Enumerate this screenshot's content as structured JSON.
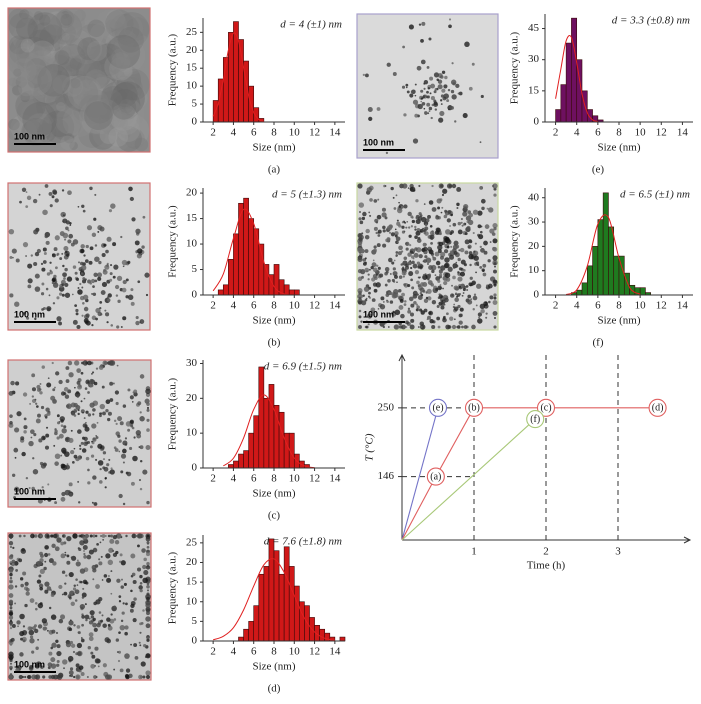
{
  "chart_data": [
    {
      "type": "histogram",
      "panel_label": "(a)",
      "scale_bar": "100 nm",
      "annotation": "d = 4 (±1) nm",
      "x_label": "Size (nm)",
      "y_label": "Frequency (a.u.)",
      "color": "#d01818",
      "bins": [
        2,
        2.5,
        3,
        3.5,
        4,
        4.5,
        5,
        5.5,
        6,
        6.5,
        7
      ],
      "counts": [
        6,
        12,
        18,
        25,
        28,
        23,
        17,
        10,
        4,
        1
      ],
      "fit": {
        "color": "#e02020",
        "x": [
          2,
          2.5,
          3,
          3.5,
          4,
          4.5,
          5,
          5.5,
          6,
          6.5,
          7
        ],
        "y": [
          1.6,
          5.1,
          11.8,
          20,
          24.8,
          22.6,
          15.2,
          7.4,
          2.7,
          0.7,
          0.2
        ]
      },
      "xlim": [
        1,
        15
      ],
      "xticks": [
        2,
        4,
        6,
        8,
        10,
        12,
        14
      ],
      "ylim": [
        0,
        29
      ],
      "yticks": [
        0,
        5,
        10,
        15,
        20,
        25
      ]
    },
    {
      "type": "histogram",
      "panel_label": "(b)",
      "scale_bar": "100 nm",
      "annotation": "d = 5 (±1.3) nm",
      "x_label": "Size (nm)",
      "y_label": "Frequency (a.u.)",
      "color": "#d01818",
      "bins": [
        2.5,
        3,
        3.5,
        4,
        4.5,
        5,
        5.5,
        6,
        6.5,
        7,
        7.5,
        8,
        8.5,
        9,
        9.5,
        10,
        10.5
      ],
      "counts": [
        1,
        2,
        7,
        12,
        18,
        19,
        15,
        13,
        10,
        6,
        4,
        6,
        3,
        2,
        1,
        1
      ],
      "fit": {
        "color": "#e02020",
        "x": [
          2,
          3,
          4,
          5,
          6,
          7,
          8,
          9,
          10
        ],
        "y": [
          0.8,
          4.1,
          11.1,
          16.8,
          14,
          6.5,
          1.7,
          0.2,
          0
        ]
      },
      "xlim": [
        1,
        15
      ],
      "xticks": [
        2,
        4,
        6,
        8,
        10,
        12,
        14
      ],
      "ylim": [
        0,
        21
      ],
      "yticks": [
        0,
        5,
        10,
        15,
        20
      ]
    },
    {
      "type": "histogram",
      "panel_label": "(c)",
      "scale_bar": "100 nm",
      "annotation": "d = 6.9 (±1.5) nm",
      "x_label": "Size (nm)",
      "y_label": "Frequency (a.u.)",
      "color": "#d01818",
      "bins": [
        3.5,
        4,
        4.5,
        5,
        5.5,
        6,
        6.5,
        7,
        7.5,
        8,
        8.5,
        9,
        9.5,
        10,
        10.5,
        11,
        11.5
      ],
      "counts": [
        1,
        2,
        4,
        5,
        10,
        15,
        29,
        20,
        24,
        18,
        16,
        10,
        10,
        4,
        2,
        1
      ],
      "fit": {
        "color": "#e02020",
        "x": [
          3,
          4,
          5,
          6,
          7,
          8,
          9,
          10,
          11,
          12
        ],
        "y": [
          0.6,
          2.8,
          8.6,
          16.8,
          21,
          16.8,
          8.6,
          2.8,
          0.6,
          0.1
        ]
      },
      "xlim": [
        1,
        15
      ],
      "xticks": [
        2,
        4,
        6,
        8,
        10,
        12,
        14
      ],
      "ylim": [
        0,
        31
      ],
      "yticks": [
        0,
        10,
        20,
        30
      ]
    },
    {
      "type": "histogram",
      "panel_label": "(d)",
      "scale_bar": "100 nm",
      "annotation": "d = 7.6 (±1.8) nm",
      "x_label": "Size (nm)",
      "y_label": "Frequency (a.u.)",
      "color": "#d01818",
      "bins": [
        4.5,
        5,
        5.5,
        6,
        6.5,
        7,
        7.5,
        8,
        8.5,
        9,
        9.5,
        10,
        10.5,
        11,
        11.5,
        12,
        12.5,
        13,
        13.5,
        14,
        14.5,
        15
      ],
      "counts": [
        1,
        3,
        5,
        9,
        17,
        19,
        26,
        23,
        17,
        24,
        19,
        14,
        10,
        9,
        6,
        4,
        3,
        2,
        1,
        0,
        1
      ],
      "fit": {
        "color": "#e02020",
        "x": [
          2,
          3,
          4,
          5,
          6,
          7,
          8,
          9,
          10,
          11,
          12,
          13,
          14
        ],
        "y": [
          0.3,
          1.2,
          3.4,
          7.9,
          14,
          19.4,
          20.9,
          17.5,
          11.5,
          5.8,
          2.3,
          0.7,
          0.2
        ]
      },
      "xlim": [
        1,
        15
      ],
      "xticks": [
        2,
        4,
        6,
        8,
        10,
        12,
        14
      ],
      "ylim": [
        0,
        27
      ],
      "yticks": [
        0,
        5,
        10,
        15,
        20,
        25
      ]
    },
    {
      "type": "histogram",
      "panel_label": "(e)",
      "scale_bar": "100 nm",
      "annotation": "d = 3.3 (±0.8) nm",
      "x_label": "Size (nm)",
      "y_label": "Frequency (a.u.)",
      "color": "#6e1060",
      "bins": [
        2,
        2.5,
        3,
        3.5,
        4,
        4.5,
        5,
        5.5,
        6,
        6.5
      ],
      "counts": [
        6,
        18,
        38,
        50,
        30,
        15,
        6,
        3,
        1
      ],
      "fit": {
        "color": "#e02020",
        "x": [
          2,
          2.5,
          3,
          3.5,
          4,
          4.5,
          5,
          5.5,
          6
        ],
        "y": [
          11.2,
          25.5,
          39.1,
          40.7,
          28.6,
          13.6,
          4.4,
          1,
          0.2
        ]
      },
      "xlim": [
        1,
        15
      ],
      "xticks": [
        2,
        4,
        6,
        8,
        10,
        12,
        14
      ],
      "ylim": [
        0,
        52
      ],
      "yticks": [
        0,
        15,
        30,
        45
      ]
    },
    {
      "type": "histogram",
      "panel_label": "(f)",
      "scale_bar": "100 nm",
      "annotation": "d = 6.5 (±1) nm",
      "x_label": "Size (nm)",
      "y_label": "Frequency (a.u.)",
      "color": "#1f7a1f",
      "bins": [
        3.5,
        4,
        4.5,
        5,
        5.5,
        6,
        6.5,
        7,
        7.5,
        8,
        8.5,
        9,
        9.5,
        10,
        10.5,
        11
      ],
      "counts": [
        1,
        2,
        5,
        12,
        20,
        31,
        42,
        28,
        16,
        16,
        9,
        4,
        3,
        3,
        1
      ],
      "fit": {
        "color": "#e02020",
        "x": [
          3,
          4,
          5,
          6,
          7,
          8,
          9,
          10
        ],
        "y": [
          0.2,
          2.1,
          11.9,
          29.2,
          31.9,
          15.2,
          3.1,
          0.3
        ]
      },
      "xlim": [
        1,
        15
      ],
      "xticks": [
        2,
        4,
        6,
        8,
        10,
        12,
        14
      ],
      "ylim": [
        0,
        44
      ],
      "yticks": [
        0,
        10,
        20,
        30,
        40
      ]
    },
    {
      "type": "line",
      "x_label": "Time (h)",
      "y_label": "T (°C)",
      "series": [
        {
          "color": "#7474c8",
          "x": [
            0,
            0.5
          ],
          "values": [
            50,
            250
          ],
          "point_labels": [
            null,
            "(e)"
          ]
        },
        {
          "color": "#e06060",
          "x": [
            0,
            0.47,
            1,
            2,
            3.55
          ],
          "values": [
            50,
            146,
            250,
            250,
            250
          ],
          "point_labels": [
            null,
            "(a)",
            "(b)",
            "(c)",
            "(d)"
          ]
        },
        {
          "color": "#a8c878",
          "x": [
            0,
            1.85
          ],
          "values": [
            50,
            233
          ],
          "point_labels": [
            null,
            "(f)"
          ]
        }
      ],
      "xlim": [
        0,
        4
      ],
      "xticks": [
        1,
        2,
        3
      ],
      "ylim": [
        50,
        330
      ],
      "yticks": [
        146,
        250
      ]
    }
  ]
}
